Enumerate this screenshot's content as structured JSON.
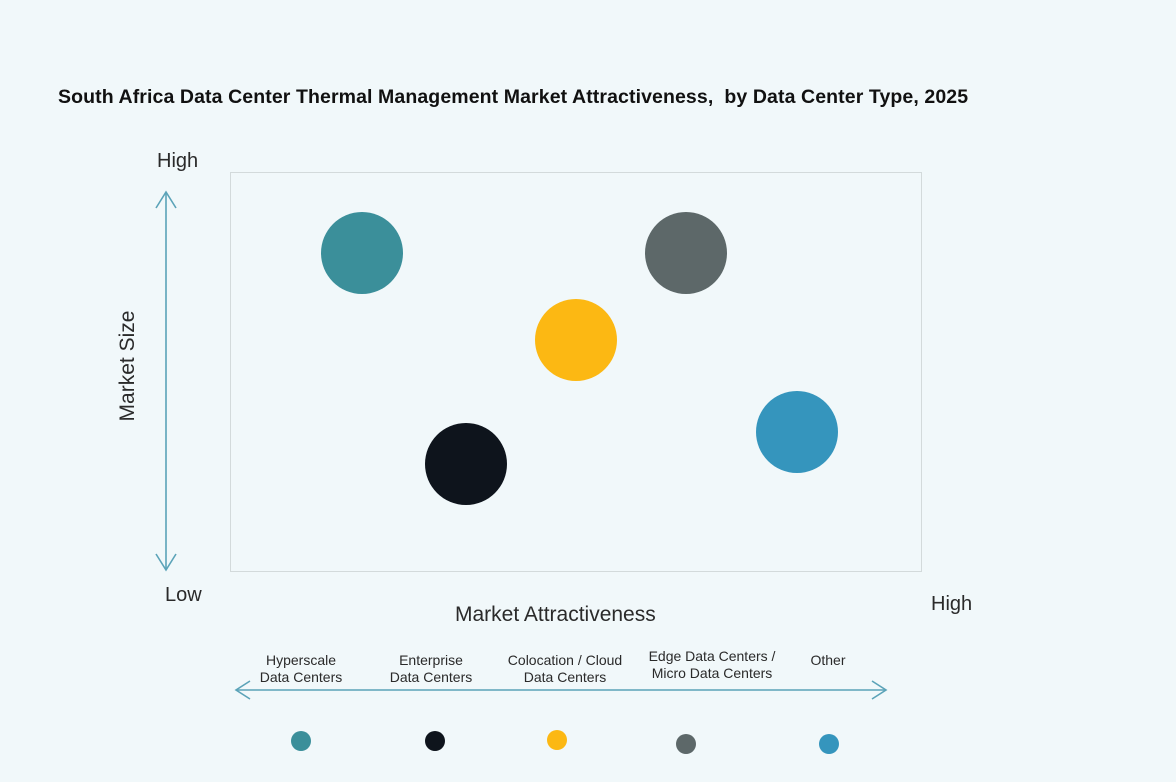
{
  "chart_data": {
    "type": "scatter",
    "title": "South Africa Data Center Thermal Management Market Attractiveness,  by Data Center Type, 2025",
    "xlabel": "Market Attractiveness",
    "ylabel": "Market Size",
    "x_range_labels": {
      "low": "Low",
      "high": "High"
    },
    "y_range_labels": {
      "low": "Low",
      "high": "High"
    },
    "grid": false,
    "legend_position": "bottom",
    "series": [
      {
        "name": "Hyperscale Data Centers",
        "color": "#3b8f9a",
        "x": 0.19,
        "y": 0.8
      },
      {
        "name": "Enterprise Data Centers",
        "color": "#0e141c",
        "x": 0.34,
        "y": 0.27
      },
      {
        "name": "Colocation / Cloud Data Centers",
        "color": "#fcb813",
        "x": 0.5,
        "y": 0.58
      },
      {
        "name": "Edge Data Centers / Micro Data Centers",
        "color": "#5d6869",
        "x": 0.66,
        "y": 0.8
      },
      {
        "name": "Other",
        "color": "#3595bd",
        "x": 0.82,
        "y": 0.35
      }
    ]
  },
  "labels": {
    "title": "South Africa Data Center Thermal Management Market Attractiveness,  by Data Center Type, 2025",
    "y_high": "High",
    "y_low": "Low",
    "x_high": "High",
    "x_title": "Market Attractiveness",
    "y_title": "Market Size"
  },
  "legend": [
    {
      "label": "Hyperscale\nData Centers",
      "color": "#3b8f9a"
    },
    {
      "label": "Enterprise\nData Centers",
      "color": "#0e141c"
    },
    {
      "label": "Colocation / Cloud\nData Centers",
      "color": "#fcb813"
    },
    {
      "label": "Edge Data Centers /\nMicro Data Centers",
      "color": "#5d6869"
    },
    {
      "label": "Other",
      "color": "#3595bd"
    }
  ],
  "colors": {
    "arrow": "#5ba3b8",
    "background": "#f1f8fa"
  }
}
